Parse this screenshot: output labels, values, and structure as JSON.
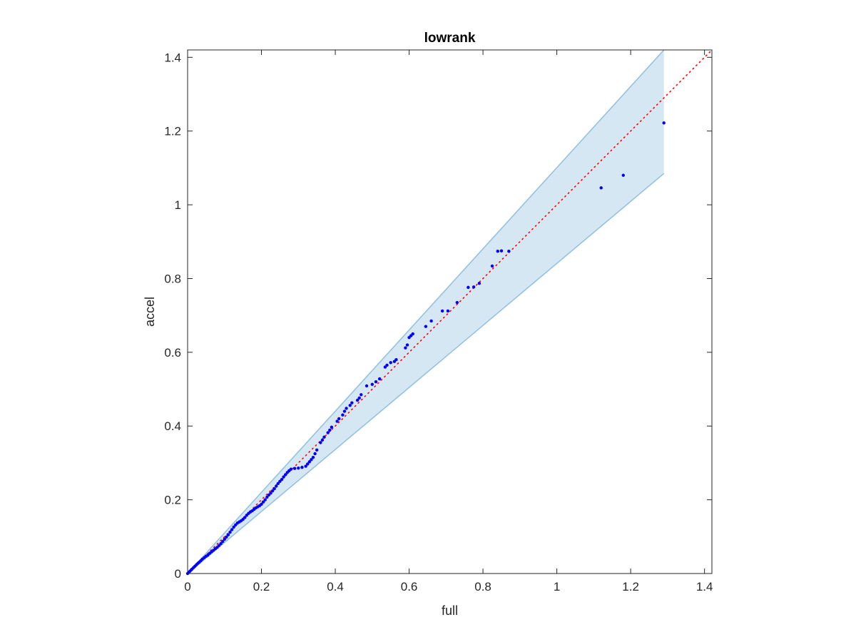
{
  "chart_data": {
    "type": "scatter",
    "title": "lowrank",
    "xlabel": "full",
    "ylabel": "accel",
    "xlim": [
      0,
      1.42
    ],
    "ylim": [
      0,
      1.42
    ],
    "xticks": [
      0,
      0.2,
      0.4,
      0.6,
      0.8,
      1,
      1.2,
      1.4
    ],
    "yticks": [
      0,
      0.2,
      0.4,
      0.6,
      0.8,
      1,
      1.2,
      1.4
    ],
    "xtick_labels": [
      "0",
      "0.2",
      "0.4",
      "0.6",
      "0.8",
      "1",
      "1.2",
      "1.4"
    ],
    "ytick_labels": [
      "0",
      "0.2",
      "0.4",
      "0.6",
      "0.8",
      "1",
      "1.2",
      "1.4"
    ],
    "grid": false,
    "legend": "none",
    "reference_line": {
      "style": "dotted",
      "color": "#ff0000",
      "x": [
        0,
        1.42
      ],
      "y": [
        0,
        1.42
      ]
    },
    "confidence_band": {
      "fill": "#d6e7f4",
      "edge": "#8fc0e0",
      "x": [
        0,
        1.29
      ],
      "upper": [
        0,
        1.42
      ],
      "lower": [
        0,
        1.085
      ]
    },
    "marker_color": "#0000ff",
    "points": {
      "x": [
        0.0,
        0.003,
        0.006,
        0.009,
        0.012,
        0.016,
        0.02,
        0.024,
        0.028,
        0.032,
        0.036,
        0.04,
        0.045,
        0.05,
        0.055,
        0.06,
        0.065,
        0.07,
        0.075,
        0.08,
        0.085,
        0.09,
        0.095,
        0.1,
        0.105,
        0.11,
        0.115,
        0.12,
        0.125,
        0.13,
        0.135,
        0.14,
        0.145,
        0.15,
        0.155,
        0.16,
        0.165,
        0.17,
        0.175,
        0.18,
        0.185,
        0.19,
        0.195,
        0.2,
        0.205,
        0.21,
        0.215,
        0.22,
        0.225,
        0.23,
        0.235,
        0.24,
        0.245,
        0.25,
        0.255,
        0.26,
        0.265,
        0.27,
        0.275,
        0.28,
        0.29,
        0.3,
        0.31,
        0.32,
        0.325,
        0.33,
        0.335,
        0.34,
        0.345,
        0.35,
        0.36,
        0.365,
        0.37,
        0.38,
        0.385,
        0.39,
        0.405,
        0.41,
        0.42,
        0.425,
        0.43,
        0.44,
        0.445,
        0.46,
        0.465,
        0.47,
        0.485,
        0.5,
        0.51,
        0.52,
        0.535,
        0.54,
        0.55,
        0.56,
        0.565,
        0.59,
        0.595,
        0.6,
        0.605,
        0.61,
        0.645,
        0.66,
        0.69,
        0.705,
        0.73,
        0.76,
        0.775,
        0.79,
        0.825,
        0.84,
        0.85,
        0.87,
        1.12,
        1.18,
        1.29
      ],
      "y": [
        0.0,
        0.003,
        0.006,
        0.009,
        0.012,
        0.016,
        0.02,
        0.024,
        0.028,
        0.031,
        0.035,
        0.039,
        0.043,
        0.047,
        0.05,
        0.055,
        0.059,
        0.063,
        0.067,
        0.071,
        0.076,
        0.081,
        0.087,
        0.093,
        0.099,
        0.105,
        0.112,
        0.119,
        0.126,
        0.132,
        0.137,
        0.14,
        0.143,
        0.147,
        0.152,
        0.158,
        0.163,
        0.167,
        0.17,
        0.174,
        0.178,
        0.181,
        0.184,
        0.188,
        0.194,
        0.2,
        0.207,
        0.213,
        0.218,
        0.224,
        0.23,
        0.237,
        0.244,
        0.25,
        0.255,
        0.262,
        0.268,
        0.274,
        0.279,
        0.283,
        0.285,
        0.286,
        0.288,
        0.291,
        0.297,
        0.303,
        0.309,
        0.315,
        0.325,
        0.335,
        0.355,
        0.362,
        0.37,
        0.382,
        0.389,
        0.397,
        0.413,
        0.42,
        0.43,
        0.44,
        0.448,
        0.456,
        0.463,
        0.47,
        0.476,
        0.485,
        0.509,
        0.513,
        0.52,
        0.528,
        0.56,
        0.565,
        0.572,
        0.575,
        0.58,
        0.612,
        0.62,
        0.64,
        0.645,
        0.65,
        0.67,
        0.685,
        0.712,
        0.712,
        0.735,
        0.776,
        0.777,
        0.787,
        0.834,
        0.874,
        0.875,
        0.874,
        1.046,
        1.08,
        1.222
      ]
    }
  }
}
